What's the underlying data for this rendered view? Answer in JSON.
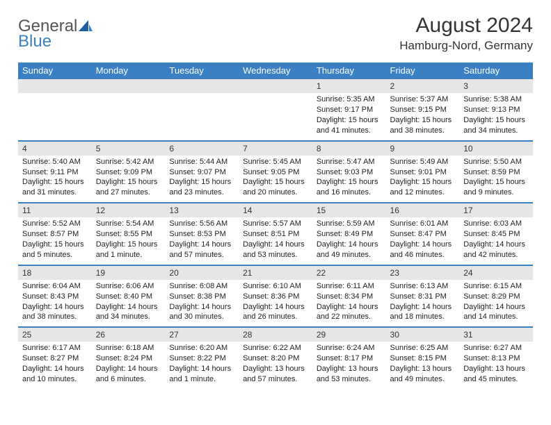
{
  "brand": {
    "part1": "General",
    "part2": "Blue"
  },
  "title": "August 2024",
  "subtitle": "Hamburg-Nord, Germany",
  "colors": {
    "header_bg": "#3b7fc4",
    "header_fg": "#ffffff",
    "daybar_bg": "#e6e6e6",
    "rule": "#3b7fc4",
    "text": "#222222",
    "page_bg": "#ffffff"
  },
  "fonts": {
    "base": 11,
    "daynum": 12,
    "th": 13,
    "title": 30,
    "subtitle": 17
  },
  "day_headers": [
    "Sunday",
    "Monday",
    "Tuesday",
    "Wednesday",
    "Thursday",
    "Friday",
    "Saturday"
  ],
  "weeks": [
    [
      null,
      null,
      null,
      null,
      {
        "n": "1",
        "sunrise": "5:35 AM",
        "sunset": "9:17 PM",
        "dl": "15 hours and 41 minutes."
      },
      {
        "n": "2",
        "sunrise": "5:37 AM",
        "sunset": "9:15 PM",
        "dl": "15 hours and 38 minutes."
      },
      {
        "n": "3",
        "sunrise": "5:38 AM",
        "sunset": "9:13 PM",
        "dl": "15 hours and 34 minutes."
      }
    ],
    [
      {
        "n": "4",
        "sunrise": "5:40 AM",
        "sunset": "9:11 PM",
        "dl": "15 hours and 31 minutes."
      },
      {
        "n": "5",
        "sunrise": "5:42 AM",
        "sunset": "9:09 PM",
        "dl": "15 hours and 27 minutes."
      },
      {
        "n": "6",
        "sunrise": "5:44 AM",
        "sunset": "9:07 PM",
        "dl": "15 hours and 23 minutes."
      },
      {
        "n": "7",
        "sunrise": "5:45 AM",
        "sunset": "9:05 PM",
        "dl": "15 hours and 20 minutes."
      },
      {
        "n": "8",
        "sunrise": "5:47 AM",
        "sunset": "9:03 PM",
        "dl": "15 hours and 16 minutes."
      },
      {
        "n": "9",
        "sunrise": "5:49 AM",
        "sunset": "9:01 PM",
        "dl": "15 hours and 12 minutes."
      },
      {
        "n": "10",
        "sunrise": "5:50 AM",
        "sunset": "8:59 PM",
        "dl": "15 hours and 9 minutes."
      }
    ],
    [
      {
        "n": "11",
        "sunrise": "5:52 AM",
        "sunset": "8:57 PM",
        "dl": "15 hours and 5 minutes."
      },
      {
        "n": "12",
        "sunrise": "5:54 AM",
        "sunset": "8:55 PM",
        "dl": "15 hours and 1 minute."
      },
      {
        "n": "13",
        "sunrise": "5:56 AM",
        "sunset": "8:53 PM",
        "dl": "14 hours and 57 minutes."
      },
      {
        "n": "14",
        "sunrise": "5:57 AM",
        "sunset": "8:51 PM",
        "dl": "14 hours and 53 minutes."
      },
      {
        "n": "15",
        "sunrise": "5:59 AM",
        "sunset": "8:49 PM",
        "dl": "14 hours and 49 minutes."
      },
      {
        "n": "16",
        "sunrise": "6:01 AM",
        "sunset": "8:47 PM",
        "dl": "14 hours and 46 minutes."
      },
      {
        "n": "17",
        "sunrise": "6:03 AM",
        "sunset": "8:45 PM",
        "dl": "14 hours and 42 minutes."
      }
    ],
    [
      {
        "n": "18",
        "sunrise": "6:04 AM",
        "sunset": "8:43 PM",
        "dl": "14 hours and 38 minutes."
      },
      {
        "n": "19",
        "sunrise": "6:06 AM",
        "sunset": "8:40 PM",
        "dl": "14 hours and 34 minutes."
      },
      {
        "n": "20",
        "sunrise": "6:08 AM",
        "sunset": "8:38 PM",
        "dl": "14 hours and 30 minutes."
      },
      {
        "n": "21",
        "sunrise": "6:10 AM",
        "sunset": "8:36 PM",
        "dl": "14 hours and 26 minutes."
      },
      {
        "n": "22",
        "sunrise": "6:11 AM",
        "sunset": "8:34 PM",
        "dl": "14 hours and 22 minutes."
      },
      {
        "n": "23",
        "sunrise": "6:13 AM",
        "sunset": "8:31 PM",
        "dl": "14 hours and 18 minutes."
      },
      {
        "n": "24",
        "sunrise": "6:15 AM",
        "sunset": "8:29 PM",
        "dl": "14 hours and 14 minutes."
      }
    ],
    [
      {
        "n": "25",
        "sunrise": "6:17 AM",
        "sunset": "8:27 PM",
        "dl": "14 hours and 10 minutes."
      },
      {
        "n": "26",
        "sunrise": "6:18 AM",
        "sunset": "8:24 PM",
        "dl": "14 hours and 6 minutes."
      },
      {
        "n": "27",
        "sunrise": "6:20 AM",
        "sunset": "8:22 PM",
        "dl": "14 hours and 1 minute."
      },
      {
        "n": "28",
        "sunrise": "6:22 AM",
        "sunset": "8:20 PM",
        "dl": "13 hours and 57 minutes."
      },
      {
        "n": "29",
        "sunrise": "6:24 AM",
        "sunset": "8:17 PM",
        "dl": "13 hours and 53 minutes."
      },
      {
        "n": "30",
        "sunrise": "6:25 AM",
        "sunset": "8:15 PM",
        "dl": "13 hours and 49 minutes."
      },
      {
        "n": "31",
        "sunrise": "6:27 AM",
        "sunset": "8:13 PM",
        "dl": "13 hours and 45 minutes."
      }
    ]
  ],
  "labels": {
    "sunrise": "Sunrise:",
    "sunset": "Sunset:",
    "daylight": "Daylight:"
  }
}
